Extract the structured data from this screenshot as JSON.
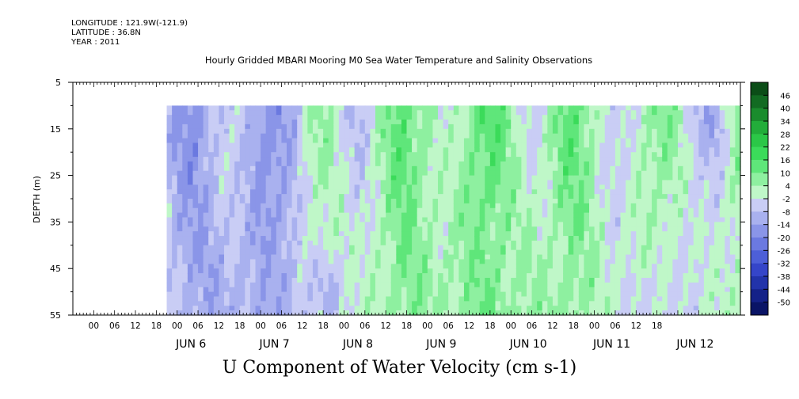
{
  "header": {
    "longitude": "LONGITUDE : 121.9W(-121.9)",
    "latitude": "LATITUDE : 36.8N",
    "year": "YEAR : 2011"
  },
  "title": "Hourly Gridded MBARI Mooring M0 Sea Water Temperature and Salinity Observations",
  "footer_title": "U Component of Water Velocity (cm s-1)",
  "chart_data": {
    "type": "heatmap",
    "title": "Hourly Gridded MBARI Mooring M0 Sea Water Temperature and Salinity Observations",
    "ylabel": "DEPTH (m)",
    "xlabel": "U Component of Water Velocity (cm s-1)",
    "ylim": [
      55,
      5
    ],
    "yticks": [
      "5",
      "15",
      "25",
      "35",
      "45",
      "55"
    ],
    "xlim": [
      "JUN 5 00",
      "JUN 12 24"
    ],
    "xtick_hours": [
      "00",
      "06",
      "12",
      "18",
      "00",
      "06",
      "12",
      "18",
      "00",
      "06",
      "12",
      "18",
      "00",
      "06",
      "12",
      "18",
      "00",
      "06",
      "12",
      "18",
      "00",
      "06",
      "12",
      "18",
      "00",
      "06",
      "12",
      "18"
    ],
    "day_labels": [
      "JUN  6",
      "JUN  7",
      "JUN  8",
      "JUN  9",
      "JUN 10",
      "JUN 11",
      "JUN 12"
    ],
    "data_depth_range": [
      10,
      55
    ],
    "data_start": "JUN 6 03",
    "colorbar": {
      "labels": [
        "46",
        "40",
        "34",
        "28",
        "22",
        "16",
        "10",
        "4",
        "-2",
        "-8",
        "-14",
        "-20",
        "-26",
        "-32",
        "-38",
        "-44",
        "-50"
      ],
      "levels": [
        52,
        46,
        40,
        34,
        28,
        22,
        16,
        10,
        4,
        -2,
        -8,
        -14,
        -20,
        -26,
        -32,
        -38,
        -44,
        -50
      ],
      "colors": [
        "#0b4d17",
        "#126b22",
        "#1a8c2d",
        "#22ad3a",
        "#2bc747",
        "#3bdb5a",
        "#5fe67a",
        "#8ef0a0",
        "#bff7c8",
        "#c9cdf5",
        "#a9b1ef",
        "#8a95e8",
        "#6b79e0",
        "#4d5fd8",
        "#3545c9",
        "#2233aa",
        "#142188",
        "#0a1466"
      ]
    },
    "grid": false
  }
}
